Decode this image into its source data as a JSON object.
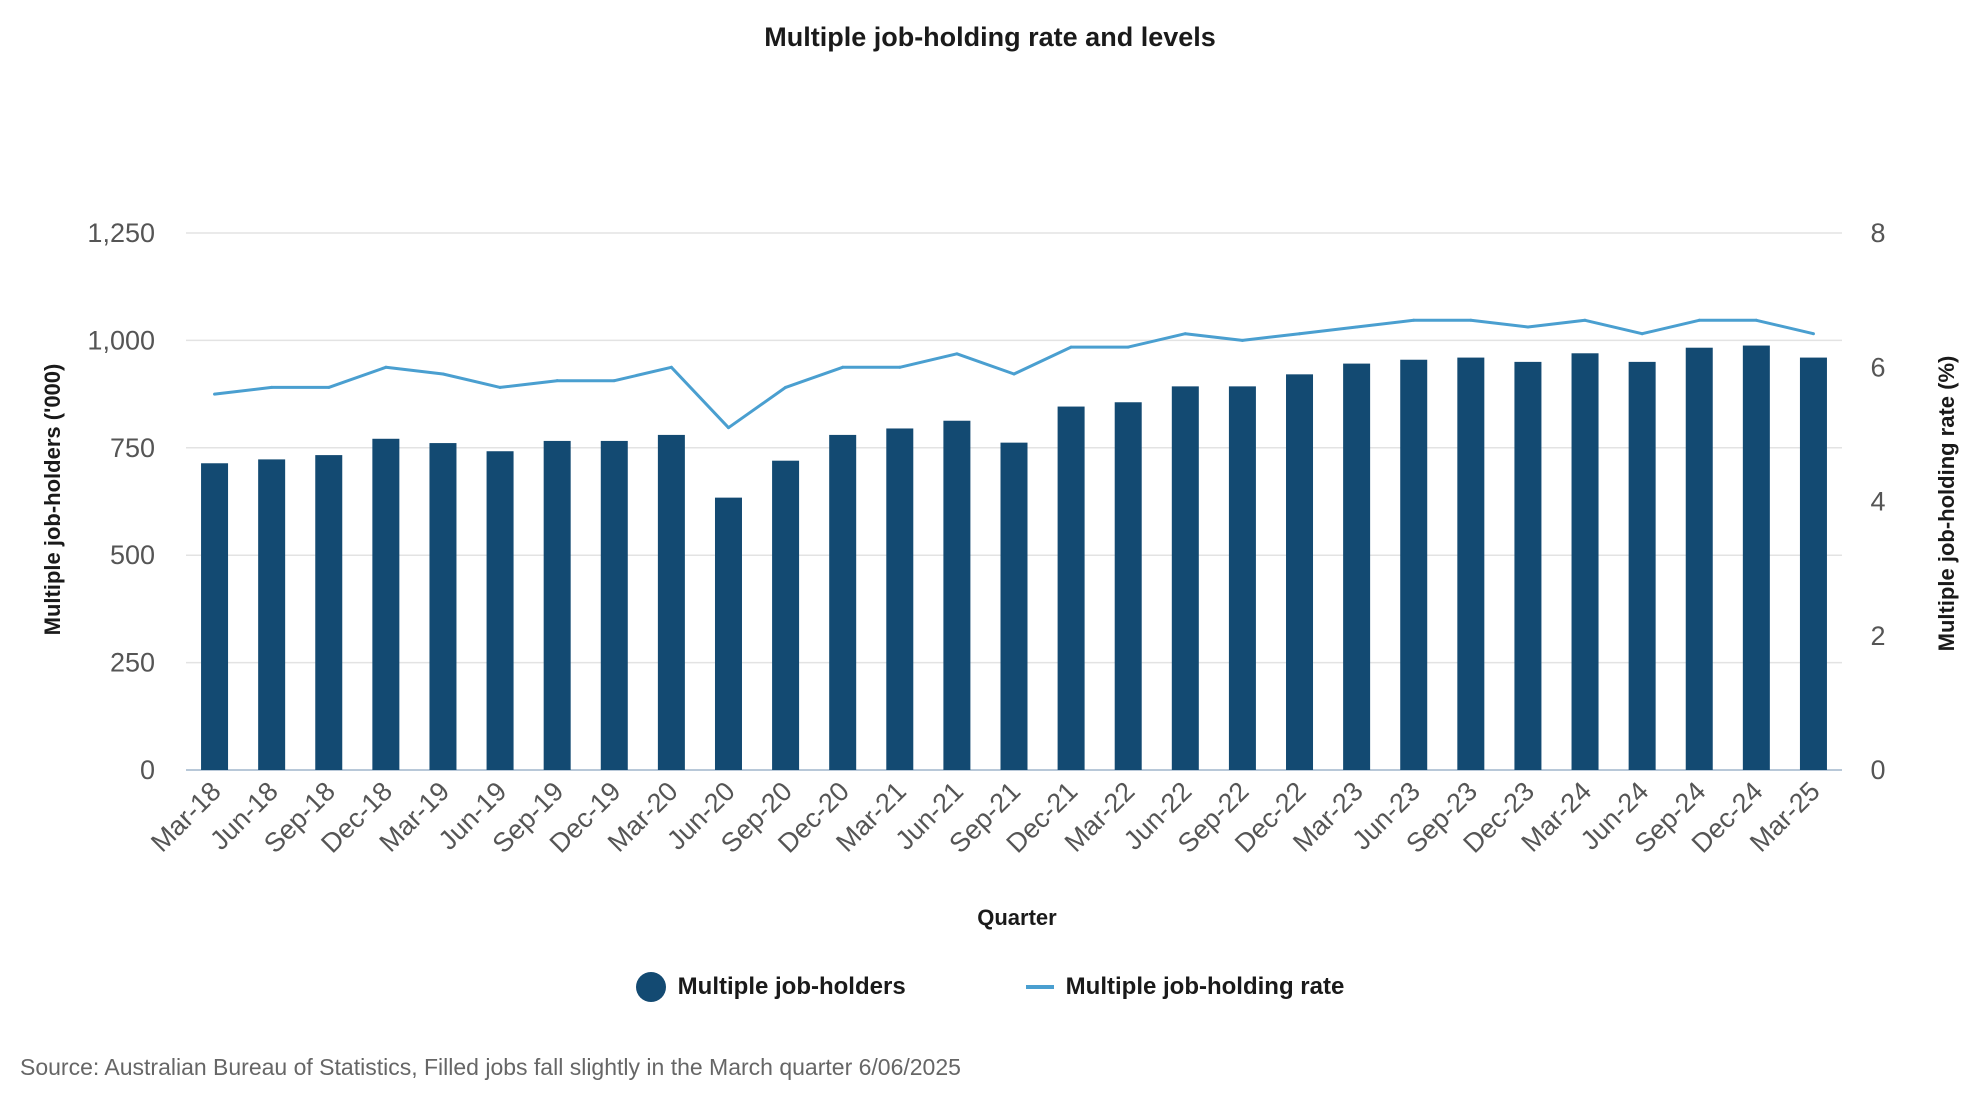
{
  "chart_data": {
    "type": "bar",
    "title": "Multiple job-holding rate and levels",
    "xlabel": "Quarter",
    "ylabel": "Multiple job-holders ('000)",
    "y2label": "Multiple job-holding rate (%)",
    "ylim": [
      0,
      1250
    ],
    "y2lim": [
      0,
      8
    ],
    "yticks": [
      "0",
      "250",
      "500",
      "750",
      "1,000",
      "1,250"
    ],
    "y2ticks": [
      "0",
      "2",
      "4",
      "6",
      "8"
    ],
    "categories": [
      "Mar-18",
      "Jun-18",
      "Sep-18",
      "Dec-18",
      "Mar-19",
      "Jun-19",
      "Sep-19",
      "Dec-19",
      "Mar-20",
      "Jun-20",
      "Sep-20",
      "Dec-20",
      "Mar-21",
      "Jun-21",
      "Sep-21",
      "Dec-21",
      "Mar-22",
      "Jun-22",
      "Sep-22",
      "Dec-22",
      "Mar-23",
      "Jun-23",
      "Sep-23",
      "Dec-23",
      "Mar-24",
      "Jun-24",
      "Sep-24",
      "Dec-24",
      "Mar-25"
    ],
    "series": [
      {
        "name": "Multiple job-holders",
        "type": "bar",
        "axis": "left",
        "color": "#134a72",
        "values": [
          714,
          723,
          733,
          771,
          761,
          742,
          766,
          766,
          780,
          634,
          720,
          780,
          795,
          813,
          762,
          846,
          856,
          893,
          893,
          921,
          946,
          955,
          960,
          950,
          970,
          950,
          983,
          988,
          960
        ]
      },
      {
        "name": "Multiple job-holding rate",
        "type": "line",
        "axis": "right",
        "color": "#4a9fd0",
        "values": [
          5.6,
          5.7,
          5.7,
          6.0,
          5.9,
          5.7,
          5.8,
          5.8,
          6.0,
          5.1,
          5.7,
          6.0,
          6.0,
          6.2,
          5.9,
          6.3,
          6.3,
          6.5,
          6.4,
          6.5,
          6.6,
          6.7,
          6.7,
          6.6,
          6.7,
          6.5,
          6.7,
          6.7,
          6.5
        ]
      }
    ],
    "legend_position": "bottom",
    "grid": true
  },
  "legend": {
    "bar_label": "Multiple job-holders",
    "line_label": "Multiple job-holding rate"
  },
  "source": "Source: Australian Bureau of Statistics, Filled jobs fall slightly in the March quarter 6/06/2025"
}
